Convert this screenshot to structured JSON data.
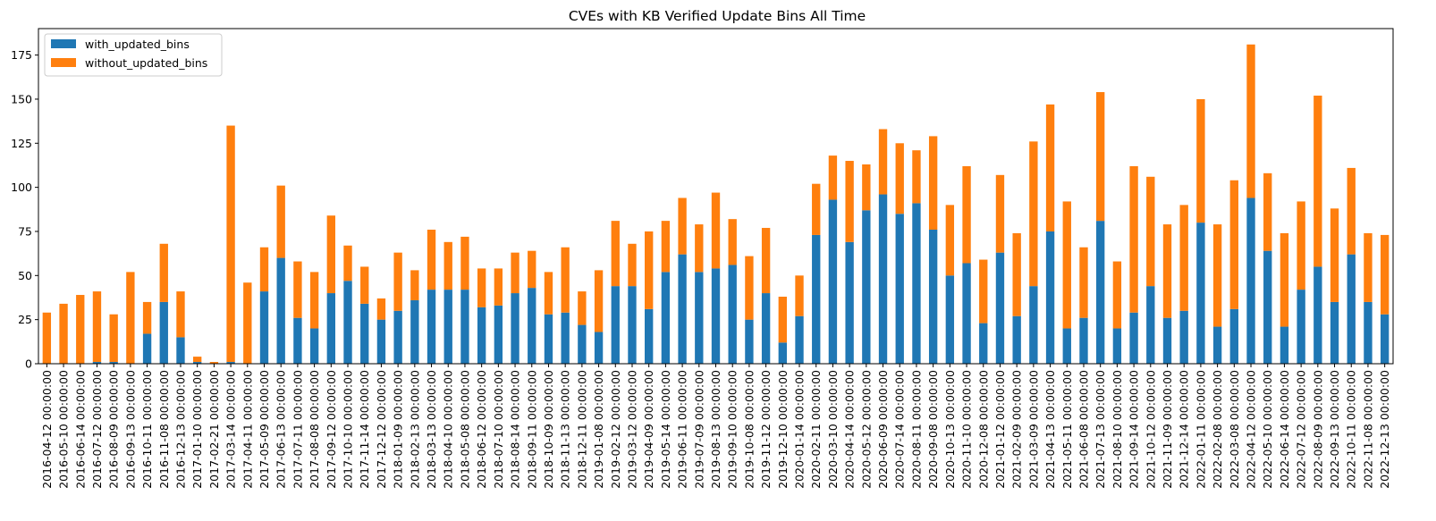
{
  "chart_data": {
    "type": "bar",
    "stacked": true,
    "title": "CVEs with KB Verified Update Bins All Time",
    "xlabel": "",
    "ylabel": "",
    "ylim": [
      0,
      190
    ],
    "yticks": [
      0,
      25,
      50,
      75,
      100,
      125,
      150,
      175
    ],
    "grid": false,
    "legend_position": "top-left",
    "categories": [
      "2016-04-12 00:00:00",
      "2016-05-10 00:00:00",
      "2016-06-14 00:00:00",
      "2016-07-12 00:00:00",
      "2016-08-09 00:00:00",
      "2016-09-13 00:00:00",
      "2016-10-11 00:00:00",
      "2016-11-08 00:00:00",
      "2016-12-13 00:00:00",
      "2017-01-10 00:00:00",
      "2017-02-21 00:00:00",
      "2017-03-14 00:00:00",
      "2017-04-11 00:00:00",
      "2017-05-09 00:00:00",
      "2017-06-13 00:00:00",
      "2017-07-11 00:00:00",
      "2017-08-08 00:00:00",
      "2017-09-12 00:00:00",
      "2017-10-10 00:00:00",
      "2017-11-14 00:00:00",
      "2017-12-12 00:00:00",
      "2018-01-09 00:00:00",
      "2018-02-13 00:00:00",
      "2018-03-13 00:00:00",
      "2018-04-10 00:00:00",
      "2018-05-08 00:00:00",
      "2018-06-12 00:00:00",
      "2018-07-10 00:00:00",
      "2018-08-14 00:00:00",
      "2018-09-11 00:00:00",
      "2018-10-09 00:00:00",
      "2018-11-13 00:00:00",
      "2018-12-11 00:00:00",
      "2019-01-08 00:00:00",
      "2019-02-12 00:00:00",
      "2019-03-12 00:00:00",
      "2019-04-09 00:00:00",
      "2019-05-14 00:00:00",
      "2019-06-11 00:00:00",
      "2019-07-09 00:00:00",
      "2019-08-13 00:00:00",
      "2019-09-10 00:00:00",
      "2019-10-08 00:00:00",
      "2019-11-12 00:00:00",
      "2019-12-10 00:00:00",
      "2020-01-14 00:00:00",
      "2020-02-11 00:00:00",
      "2020-03-10 00:00:00",
      "2020-04-14 00:00:00",
      "2020-05-12 00:00:00",
      "2020-06-09 00:00:00",
      "2020-07-14 00:00:00",
      "2020-08-11 00:00:00",
      "2020-09-08 00:00:00",
      "2020-10-13 00:00:00",
      "2020-11-10 00:00:00",
      "2020-12-08 00:00:00",
      "2021-01-12 00:00:00",
      "2021-02-09 00:00:00",
      "2021-03-09 00:00:00",
      "2021-04-13 00:00:00",
      "2021-05-11 00:00:00",
      "2021-06-08 00:00:00",
      "2021-07-13 00:00:00",
      "2021-08-10 00:00:00",
      "2021-09-14 00:00:00",
      "2021-10-12 00:00:00",
      "2021-11-09 00:00:00",
      "2021-12-14 00:00:00",
      "2022-01-11 00:00:00",
      "2022-02-08 00:00:00",
      "2022-03-08 00:00:00",
      "2022-04-12 00:00:00",
      "2022-05-10 00:00:00",
      "2022-06-14 00:00:00",
      "2022-07-12 00:00:00",
      "2022-08-09 00:00:00",
      "2022-09-13 00:00:00",
      "2022-10-11 00:00:00",
      "2022-11-08 00:00:00",
      "2022-12-13 00:00:00"
    ],
    "series": [
      {
        "name": "with_updated_bins",
        "color": "#1f77b4",
        "values": [
          0,
          0,
          0,
          1,
          1,
          0,
          17,
          35,
          15,
          1,
          0,
          1,
          0,
          41,
          60,
          26,
          20,
          40,
          47,
          34,
          25,
          30,
          36,
          42,
          42,
          42,
          32,
          33,
          40,
          43,
          28,
          29,
          22,
          18,
          44,
          44,
          31,
          52,
          62,
          52,
          54,
          56,
          25,
          40,
          12,
          27,
          73,
          93,
          69,
          87,
          96,
          85,
          91,
          76,
          50,
          57,
          23,
          63,
          27,
          44,
          75,
          20,
          26,
          81,
          20,
          29,
          44,
          26,
          30,
          80,
          21,
          31,
          94,
          64,
          21,
          42,
          55,
          35,
          62,
          35,
          28
        ]
      },
      {
        "name": "without_updated_bins",
        "color": "#ff7f0e",
        "values": [
          29,
          34,
          39,
          40,
          27,
          52,
          18,
          33,
          26,
          3,
          1,
          134,
          46,
          25,
          41,
          32,
          32,
          44,
          20,
          21,
          12,
          33,
          17,
          34,
          27,
          30,
          22,
          21,
          23,
          21,
          24,
          37,
          19,
          35,
          37,
          24,
          44,
          29,
          32,
          27,
          43,
          26,
          36,
          37,
          26,
          23,
          29,
          25,
          46,
          26,
          37,
          40,
          30,
          53,
          40,
          55,
          36,
          44,
          47,
          82,
          72,
          72,
          40,
          73,
          38,
          83,
          62,
          53,
          60,
          70,
          58,
          73,
          87,
          44,
          53,
          50,
          97,
          53,
          49,
          39,
          45
        ]
      }
    ]
  }
}
